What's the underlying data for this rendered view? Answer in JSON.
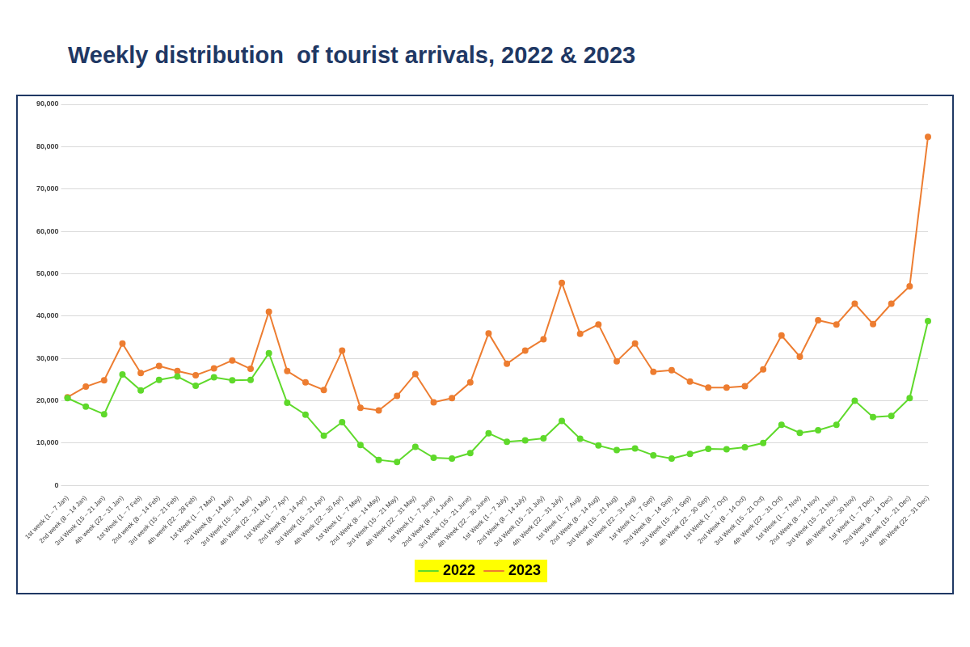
{
  "chart_data": {
    "type": "line",
    "title": "Weekly distribution  of tourist arrivals, 2022 & 2023",
    "categories": [
      "1st week (1 – 7 Jan)",
      "2nd week (8 – 14 Jan)",
      "3rd Week (15 – 21 Jan)",
      "4th week (22 – 31 Jan)",
      "1st Week (1 – 7 Feb)",
      "2nd week (8 – 14 Feb)",
      "3rd week (15 – 21 Feb)",
      "4th week (22 – 28 Feb)",
      "1st Week (1 – 7 Mar)",
      "2nd Week (8 – 14 Mar)",
      "3rd Week (15 – 21 Mar)",
      "4th Week (22 – 31 Mar)",
      "1st Week (1 – 7 Apr)",
      "2nd Week (8 – 14 Apr)",
      "3rd Week (15 – 21 Apr)",
      "4th Week (22 – 30 Apr)",
      "1st Week (1 – 7 May)",
      "2nd Week (8 – 14 May)",
      "3rd Week (15 – 21 May)",
      "4th Week (22 – 31 May)",
      "1st Week (1 – 7 June)",
      "2nd Week (8 – 14 June)",
      "3rd Week (15 – 21 June)",
      "4th Week (22 – 30 June)",
      "1st Week (1 – 7 July)",
      "2nd Week (8 – 14 July)",
      "3rd Week (15 – 21 July)",
      "4th Week (22 – 31 July)",
      "1st Week (1 – 7 Aug)",
      "2nd Week (8 – 14 Aug)",
      "3rd Week (15 – 21 Aug)",
      "4th Week (22 – 31 Aug)",
      "1st Week (1 – 7 Sep)",
      "2nd Week (8 – 14 Sep)",
      "3rd Week (15 – 21 Sep)",
      "4th Week (22 – 30 Sep)",
      "1st Week (1 – 7 Oct)",
      "2nd Week (8 – 14 Oct)",
      "3rd Week (15 – 21 Oct)",
      "4th Week (22 – 31 Oct)",
      "1st Week (1 – 7 Nov)",
      "2nd Week (8 – 14 Nov)",
      "3rd Week (15 – 21 Nov)",
      "4th Week (22 – 30 Nov)",
      "1st Week (1 – 7 Dec)",
      "2nd Week (8 – 14 Dec)",
      "3rd Week (15 – 21 Dec)",
      "4th Week (22 – 31 Dec)"
    ],
    "series": [
      {
        "name": "2022",
        "color": "#5fd92b",
        "marker": "circle",
        "values": [
          20600,
          18600,
          16800,
          26200,
          22400,
          24900,
          25700,
          23500,
          25500,
          24800,
          24900,
          31200,
          19500,
          16700,
          11700,
          14900,
          9500,
          6000,
          5500,
          9100,
          6500,
          6300,
          7600,
          12300,
          10300,
          10600,
          11100,
          15200,
          11000,
          9400,
          8300,
          8700,
          7100,
          6300,
          7400,
          8600,
          8500,
          9000,
          10000,
          14300,
          12400,
          13000,
          14300,
          20000,
          16100,
          16400,
          20600,
          38800
        ]
      },
      {
        "name": "2023",
        "color": "#ed7d31",
        "marker": "circle",
        "values": [
          20800,
          23300,
          24800,
          33500,
          26500,
          28200,
          27000,
          26000,
          27600,
          29500,
          27500,
          41000,
          27000,
          24300,
          22500,
          31800,
          18300,
          17700,
          21100,
          26300,
          19600,
          20600,
          24300,
          35900,
          28700,
          31800,
          34500,
          47800,
          35800,
          38000,
          29300,
          33500,
          26800,
          27200,
          24500,
          23100,
          23100,
          23400,
          27400,
          35400,
          30400,
          39000,
          38000,
          42900,
          38100,
          42900,
          47000,
          82300
        ]
      }
    ],
    "ylim": [
      0,
      90000
    ],
    "yticks": [
      0,
      {
        "value": 10000,
        "label": "10,000"
      },
      {
        "value": 20000,
        "label": "20,000"
      },
      {
        "value": 30000,
        "label": "30,000"
      },
      {
        "value": 40000,
        "label": "40,000"
      },
      {
        "value": 50000,
        "label": "50,000"
      },
      {
        "value": 60000,
        "label": "60,000"
      },
      {
        "value": 70000,
        "label": "70,000"
      },
      {
        "value": 80000,
        "label": "80,000"
      },
      {
        "value": 90000,
        "label": "90,000"
      }
    ],
    "grid": true,
    "legend": "bottom"
  }
}
